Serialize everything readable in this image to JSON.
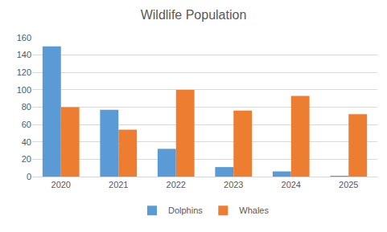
{
  "chart_data": {
    "type": "bar",
    "title": "Wildlife Population",
    "categories": [
      "2020",
      "2021",
      "2022",
      "2023",
      "2024",
      "2025"
    ],
    "series": [
      {
        "name": "Dolphins",
        "color": "#5b9bd5",
        "values": [
          150,
          77,
          32,
          11,
          6,
          1
        ]
      },
      {
        "name": "Whales",
        "color": "#ed7d31",
        "values": [
          80,
          54,
          100,
          76,
          93,
          72
        ]
      }
    ],
    "ylim": [
      0,
      160
    ],
    "yticks": [
      0,
      20,
      40,
      60,
      80,
      100,
      120,
      140,
      160
    ],
    "grid": true,
    "legend": "bottom"
  }
}
